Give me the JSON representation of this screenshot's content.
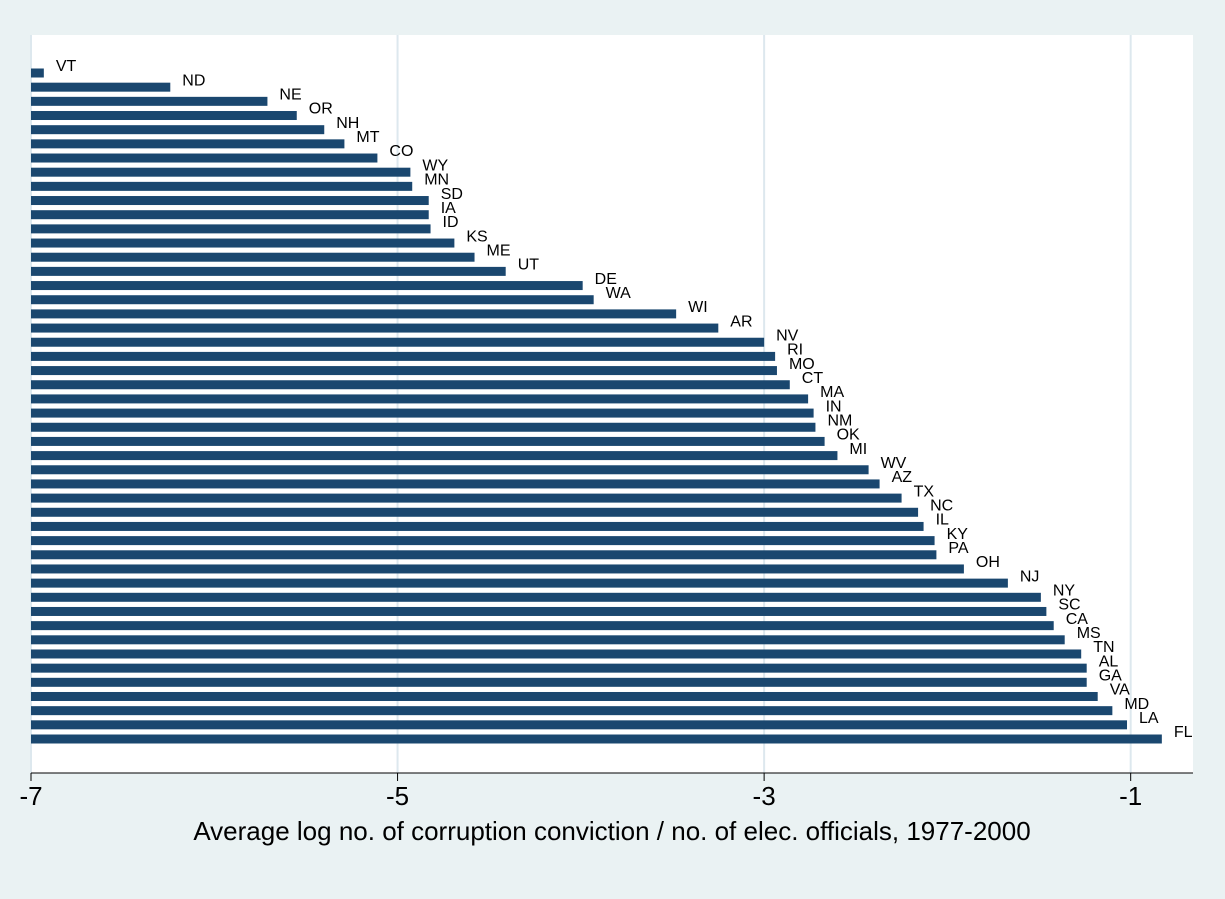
{
  "chart_data": {
    "type": "hbar",
    "x_label": "Average log no. of corruption conviction / no. of elec. officials, 1977-2000",
    "categories": [
      "VT",
      "ND",
      "NE",
      "OR",
      "NH",
      "MT",
      "CO",
      "WY",
      "MN",
      "SD",
      "IA",
      "ID",
      "KS",
      "ME",
      "UT",
      "DE",
      "WA",
      "WI",
      "AR",
      "NV",
      "RI",
      "MO",
      "CT",
      "MA",
      "IN",
      "NM",
      "OK",
      "MI",
      "WV",
      "AZ",
      "TX",
      "NC",
      "IL",
      "KY",
      "PA",
      "OH",
      "NJ",
      "NY",
      "SC",
      "CA",
      "MS",
      "TN",
      "AL",
      "GA",
      "VA",
      "MD",
      "LA",
      "FL"
    ],
    "values": [
      -6.93,
      -6.24,
      -5.71,
      -5.55,
      -5.4,
      -5.29,
      -5.11,
      -4.93,
      -4.92,
      -4.83,
      -4.83,
      -4.82,
      -4.69,
      -4.58,
      -4.41,
      -3.99,
      -3.93,
      -3.48,
      -3.25,
      -3.0,
      -2.94,
      -2.93,
      -2.86,
      -2.76,
      -2.73,
      -2.72,
      -2.67,
      -2.6,
      -2.43,
      -2.37,
      -2.25,
      -2.16,
      -2.13,
      -2.07,
      -2.06,
      -1.91,
      -1.67,
      -1.49,
      -1.46,
      -1.42,
      -1.36,
      -1.27,
      -1.24,
      -1.24,
      -1.18,
      -1.1,
      -1.02,
      -0.83
    ],
    "color": "#1a476f",
    "xlim": [
      -7,
      -0.66
    ],
    "xticks": [
      -7,
      -5,
      -3,
      -1
    ],
    "grid": true
  }
}
